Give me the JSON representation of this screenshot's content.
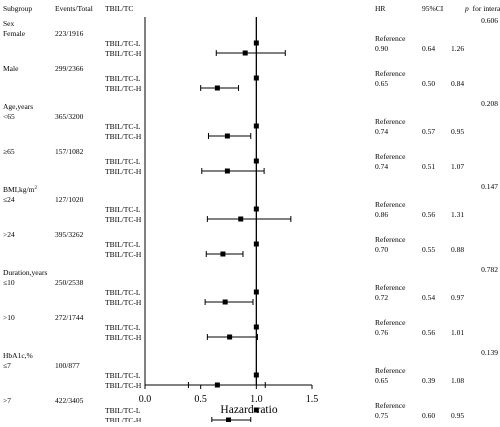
{
  "headers": {
    "subgroup": "Subgroup",
    "events_total": "Events/Total",
    "tbil_tc": "TBIL/TC",
    "hr": "HR",
    "ci": "95%CI",
    "p_label": "p",
    "p_suffix": "for interaction"
  },
  "chart_data": {
    "type": "forest",
    "xlabel": "Hazard ratio",
    "xlim": [
      0.0,
      1.5
    ],
    "xticks": [
      "0.0",
      "0.5",
      "1.0",
      "1.5"
    ],
    "reference_line": 1.0,
    "rows": [
      {
        "kind": "variable",
        "label": "Sex",
        "p": "0.606"
      },
      {
        "kind": "group",
        "label": "Female",
        "events": "223/1916"
      },
      {
        "kind": "ref",
        "level": "TBIL/TC-L",
        "hr_text": "Reference"
      },
      {
        "kind": "est",
        "level": "TBIL/TC-H",
        "hr": 0.9,
        "lo": 0.64,
        "hi": 1.26,
        "hr_text": "0.90",
        "lo_text": "0.64",
        "hi_text": "1.26"
      },
      {
        "kind": "group",
        "label": "Male",
        "events": "299/2366"
      },
      {
        "kind": "ref",
        "level": "TBIL/TC-L",
        "hr_text": "Reference"
      },
      {
        "kind": "est",
        "level": "TBIL/TC-H",
        "hr": 0.65,
        "lo": 0.5,
        "hi": 0.84,
        "hr_text": "0.65",
        "lo_text": "0.50",
        "hi_text": "0.84"
      },
      {
        "kind": "variable",
        "label": "Age,years",
        "p": "0.208"
      },
      {
        "kind": "group",
        "label": "<65",
        "events": "365/3200"
      },
      {
        "kind": "ref",
        "level": "TBIL/TC-L",
        "hr_text": "Reference"
      },
      {
        "kind": "est",
        "level": "TBIL/TC-H",
        "hr": 0.74,
        "lo": 0.57,
        "hi": 0.95,
        "hr_text": "0.74",
        "lo_text": "0.57",
        "hi_text": "0.95"
      },
      {
        "kind": "group",
        "label": "≥65",
        "events": "157/1082"
      },
      {
        "kind": "ref",
        "level": "TBIL/TC-L",
        "hr_text": "Reference"
      },
      {
        "kind": "est",
        "level": "TBIL/TC-H",
        "hr": 0.74,
        "lo": 0.51,
        "hi": 1.07,
        "hr_text": "0.74",
        "lo_text": "0.51",
        "hi_text": "1.07"
      },
      {
        "kind": "variable",
        "label": "BMI,kg/m",
        "sup": "2",
        "p": "0.147"
      },
      {
        "kind": "group",
        "label": "≤24",
        "events": "127/1020"
      },
      {
        "kind": "ref",
        "level": "TBIL/TC-L",
        "hr_text": "Reference"
      },
      {
        "kind": "est",
        "level": "TBIL/TC-H",
        "hr": 0.86,
        "lo": 0.56,
        "hi": 1.31,
        "hr_text": "0.86",
        "lo_text": "0.56",
        "hi_text": "1.31"
      },
      {
        "kind": "group",
        "label": ">24",
        "events": "395/3262"
      },
      {
        "kind": "ref",
        "level": "TBIL/TC-L",
        "hr_text": "Reference"
      },
      {
        "kind": "est",
        "level": "TBIL/TC-H",
        "hr": 0.7,
        "lo": 0.55,
        "hi": 0.88,
        "hr_text": "0.70",
        "lo_text": "0.55",
        "hi_text": "0.88"
      },
      {
        "kind": "variable",
        "label": "Duration,years",
        "p": "0.782"
      },
      {
        "kind": "group",
        "label": "≤10",
        "events": "250/2538"
      },
      {
        "kind": "ref",
        "level": "TBIL/TC-L",
        "hr_text": "Reference"
      },
      {
        "kind": "est",
        "level": "TBIL/TC-H",
        "hr": 0.72,
        "lo": 0.54,
        "hi": 0.97,
        "hr_text": "0.72",
        "lo_text": "0.54",
        "hi_text": "0.97"
      },
      {
        "kind": "group",
        "label": ">10",
        "events": "272/1744"
      },
      {
        "kind": "ref",
        "level": "TBIL/TC-L",
        "hr_text": "Reference"
      },
      {
        "kind": "est",
        "level": "TBIL/TC-H",
        "hr": 0.76,
        "lo": 0.56,
        "hi": 1.01,
        "hr_text": "0.76",
        "lo_text": "0.56",
        "hi_text": "1.01"
      },
      {
        "kind": "variable",
        "label": "HbA1c,%",
        "p": "0.139"
      },
      {
        "kind": "group",
        "label": "≤7",
        "events": "100/877"
      },
      {
        "kind": "ref",
        "level": "TBIL/TC-L",
        "hr_text": "Reference"
      },
      {
        "kind": "est",
        "level": "TBIL/TC-H",
        "hr": 0.65,
        "lo": 0.39,
        "hi": 1.08,
        "hr_text": "0.65",
        "lo_text": "0.39",
        "hi_text": "1.08"
      },
      {
        "kind": "group",
        "label": ">7",
        "events": "422/3405"
      },
      {
        "kind": "ref",
        "level": "TBIL/TC-L",
        "hr_text": "Reference"
      },
      {
        "kind": "est",
        "level": "TBIL/TC-H",
        "hr": 0.75,
        "lo": 0.6,
        "hi": 0.95,
        "hr_text": "0.75",
        "lo_text": "0.60",
        "hi_text": "0.95"
      }
    ]
  }
}
